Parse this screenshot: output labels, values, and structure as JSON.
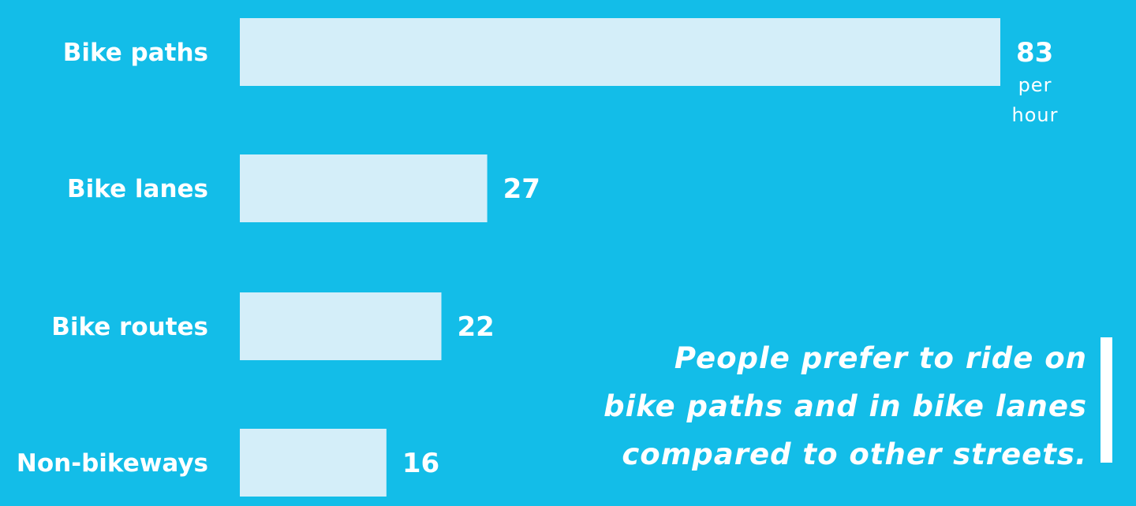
{
  "chart_data": {
    "type": "bar",
    "orientation": "horizontal",
    "categories": [
      "Bike paths",
      "Bike lanes",
      "Bike routes",
      "Non-bikeways"
    ],
    "values": [
      83,
      27,
      22,
      16
    ],
    "value_labels": [
      "83",
      "27",
      "22",
      "16"
    ],
    "unit_label": [
      "per",
      "hour"
    ],
    "title": "",
    "xlabel": "",
    "ylabel": "",
    "xlim": [
      0,
      83
    ],
    "grid": false,
    "legend": "none",
    "colors": {
      "background": "#13bde8",
      "bar": "#d4eef9",
      "text": "#ffffff"
    }
  },
  "callout": {
    "lines": [
      "People prefer to ride on",
      "bike paths and in bike lanes",
      "compared to other streets."
    ]
  }
}
